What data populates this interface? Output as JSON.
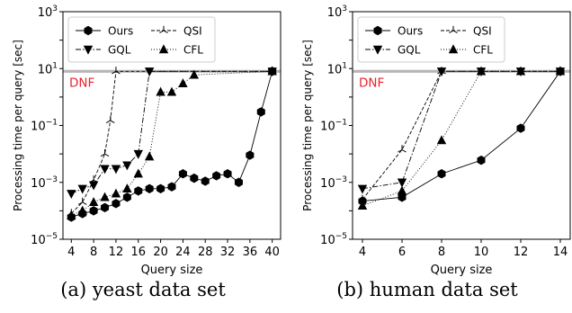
{
  "captions": {
    "a": "(a) yeast data set",
    "b": "(b) human data set"
  },
  "dnf_label": "DNF",
  "dnf_color": "#e8222b",
  "chart_data": [
    {
      "id": "yeast",
      "type": "line",
      "xlabel": "Query size",
      "ylabel": "Processing time per query [sec]",
      "yscale": "log",
      "ylim": [
        1e-05,
        1000
      ],
      "xlim": [
        2.5,
        41.5
      ],
      "xticks": [
        4,
        8,
        12,
        16,
        20,
        24,
        28,
        32,
        36,
        40
      ],
      "yticks": [
        {
          "value": 1e-05,
          "base": "10",
          "exp": "−5"
        },
        {
          "value": 0.001,
          "base": "10",
          "exp": "−3"
        },
        {
          "value": 0.1,
          "base": "10",
          "exp": "−1"
        },
        {
          "value": 10,
          "base": "10",
          "exp": "1"
        },
        {
          "value": 1000,
          "base": "10",
          "exp": "3"
        }
      ],
      "dnf_value": 8,
      "legend_placement": "top-left",
      "series": [
        {
          "name": "Ours",
          "marker": "hexagon",
          "dash": "solid",
          "x": [
            4,
            6,
            8,
            10,
            12,
            14,
            16,
            18,
            20,
            22,
            24,
            26,
            28,
            30,
            32,
            34,
            36,
            38,
            40
          ],
          "y": [
            6e-05,
            8e-05,
            0.0001,
            0.00013,
            0.00018,
            0.0003,
            0.0005,
            0.0006,
            0.0006,
            0.0007,
            0.002,
            0.0014,
            0.0011,
            0.0017,
            0.002,
            0.001,
            0.009,
            0.3,
            8
          ]
        },
        {
          "name": "QSI",
          "marker": "tri",
          "dash": "dashed",
          "x": [
            4,
            6,
            8,
            10,
            11,
            12,
            40
          ],
          "y": [
            8e-05,
            0.0002,
            0.0012,
            0.01,
            0.15,
            8,
            8
          ]
        },
        {
          "name": "GQL",
          "marker": "triangle-down",
          "dash": "dashdot",
          "x": [
            4,
            6,
            8,
            10,
            12,
            14,
            16,
            18,
            40
          ],
          "y": [
            0.0004,
            0.0006,
            0.0008,
            0.003,
            0.003,
            0.004,
            0.01,
            8,
            8
          ]
        },
        {
          "name": "CFL",
          "marker": "triangle-up",
          "dash": "dotted",
          "x": [
            4,
            6,
            8,
            10,
            12,
            14,
            16,
            18,
            20,
            22,
            24,
            26,
            40
          ],
          "y": [
            7e-05,
            0.0001,
            0.0002,
            0.0003,
            0.0004,
            0.0006,
            0.002,
            0.008,
            1.5,
            1.5,
            3,
            6,
            8
          ]
        }
      ]
    },
    {
      "id": "human",
      "type": "line",
      "xlabel": "Query size",
      "ylabel": "Processing time per query [sec]",
      "yscale": "log",
      "ylim": [
        1e-05,
        1000
      ],
      "xlim": [
        3.5,
        14.5
      ],
      "xticks": [
        4,
        6,
        8,
        10,
        12,
        14
      ],
      "yticks": [
        {
          "value": 1e-05,
          "base": "10",
          "exp": "−5"
        },
        {
          "value": 0.001,
          "base": "10",
          "exp": "−3"
        },
        {
          "value": 0.1,
          "base": "10",
          "exp": "−1"
        },
        {
          "value": 10,
          "base": "10",
          "exp": "1"
        },
        {
          "value": 1000,
          "base": "10",
          "exp": "3"
        }
      ],
      "dnf_value": 8,
      "legend_placement": "top-left",
      "series": [
        {
          "name": "Ours",
          "marker": "hexagon",
          "dash": "solid",
          "x": [
            4,
            6,
            8,
            10,
            12,
            14
          ],
          "y": [
            0.00022,
            0.0003,
            0.002,
            0.006,
            0.08,
            8
          ]
        },
        {
          "name": "QSI",
          "marker": "tri",
          "dash": "dashed",
          "x": [
            4,
            6,
            8,
            14
          ],
          "y": [
            0.00025,
            0.014,
            8,
            8
          ]
        },
        {
          "name": "GQL",
          "marker": "triangle-down",
          "dash": "dashdot",
          "x": [
            4,
            6,
            8,
            10,
            12,
            14
          ],
          "y": [
            0.0006,
            0.001,
            8,
            8,
            8,
            8
          ]
        },
        {
          "name": "CFL",
          "marker": "triangle-up",
          "dash": "dotted",
          "x": [
            4,
            6,
            8,
            10,
            12,
            14
          ],
          "y": [
            0.00015,
            0.0005,
            0.03,
            8,
            8,
            8
          ]
        }
      ]
    }
  ]
}
